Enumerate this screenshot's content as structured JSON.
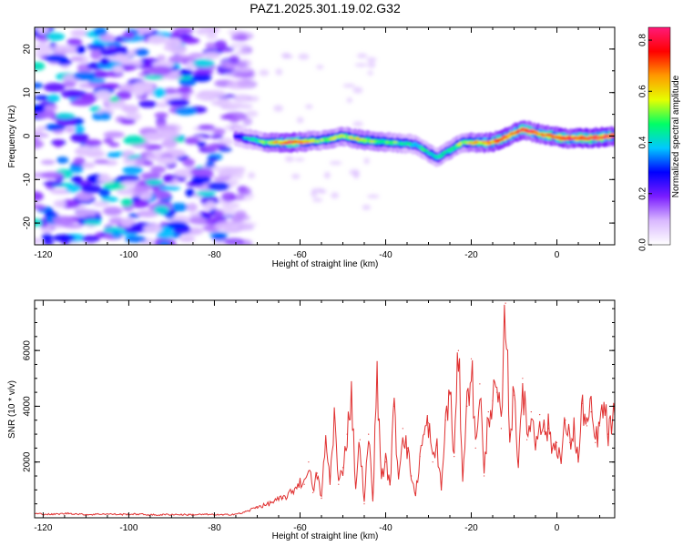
{
  "title": "PAZ1.2025.301.19.02.G32",
  "chart_data": [
    {
      "type": "heatmap",
      "xlabel": "Height of straight line (km)",
      "ylabel": "Frequency (Hz)",
      "xlim": [
        -122,
        13.5
      ],
      "ylim": [
        -25,
        25
      ],
      "xticks": [
        -120,
        -100,
        -80,
        -60,
        -40,
        -20,
        0
      ],
      "yticks": [
        -20,
        -10,
        0,
        10,
        20
      ],
      "colorbar": {
        "label": "Normalized spectral amplitude",
        "range": [
          0,
          0.85
        ],
        "ticks": [
          0.0,
          0.2,
          0.4,
          0.6,
          0.8
        ],
        "colors": [
          "#ffffff",
          "#d9b8ff",
          "#7a1cff",
          "#0000ff",
          "#00c8ff",
          "#00ff66",
          "#e6ff00",
          "#ff9900",
          "#ff0000",
          "#ff1a7a"
        ]
      },
      "noise_region": {
        "x_range": [
          -122,
          -72
        ],
        "frequency_range": [
          -25,
          25
        ],
        "amplitude": 0.15
      },
      "signal_track": [
        {
          "x": -75,
          "frequency": 0,
          "amplitude": 0.3
        },
        {
          "x": -68,
          "frequency": -1.5,
          "amplitude": 0.55
        },
        {
          "x": -62,
          "frequency": -1.5,
          "amplitude": 0.8
        },
        {
          "x": -55,
          "frequency": -1,
          "amplitude": 0.55
        },
        {
          "x": -50,
          "frequency": 0,
          "amplitude": 0.55
        },
        {
          "x": -45,
          "frequency": -1,
          "amplitude": 0.6
        },
        {
          "x": -38,
          "frequency": -1.5,
          "amplitude": 0.5
        },
        {
          "x": -33,
          "frequency": -2,
          "amplitude": 0.45
        },
        {
          "x": -28,
          "frequency": -5,
          "amplitude": 0.45
        },
        {
          "x": -22,
          "frequency": -1.5,
          "amplitude": 0.55
        },
        {
          "x": -15,
          "frequency": -1.5,
          "amplitude": 0.75
        },
        {
          "x": -8,
          "frequency": 1.5,
          "amplitude": 0.8
        },
        {
          "x": -4,
          "frequency": 0.5,
          "amplitude": 0.75
        },
        {
          "x": 2,
          "frequency": -0.5,
          "amplitude": 0.8
        },
        {
          "x": 8,
          "frequency": -0.5,
          "amplitude": 0.85
        },
        {
          "x": 13,
          "frequency": 0,
          "amplitude": 0.8
        }
      ]
    },
    {
      "type": "line",
      "xlabel": "Height of straight line (km)",
      "ylabel": "SNR (10 * v/v)",
      "xlim": [
        -122,
        13.5
      ],
      "ylim": [
        0,
        7800
      ],
      "xticks": [
        -120,
        -100,
        -80,
        -60,
        -40,
        -20,
        0
      ],
      "yticks": [
        2000,
        4000,
        6000
      ],
      "color": "#e03030",
      "series": [
        {
          "name": "SNR",
          "x": [
            -122,
            -118,
            -114,
            -110,
            -106,
            -102,
            -98,
            -94,
            -90,
            -86,
            -82,
            -78,
            -74,
            -72,
            -70,
            -68,
            -66,
            -64,
            -62,
            -60,
            -59,
            -58,
            -57,
            -56,
            -55,
            -54,
            -53,
            -52,
            -51,
            -50,
            -49,
            -48,
            -47,
            -46,
            -45,
            -44,
            -43,
            -42,
            -41,
            -40,
            -39,
            -38,
            -37,
            -36,
            -35,
            -34,
            -33,
            -32,
            -31,
            -30,
            -29,
            -28,
            -27,
            -26,
            -25,
            -24,
            -23,
            -22,
            -21,
            -20,
            -19,
            -18,
            -17,
            -16,
            -15,
            -14,
            -13,
            -12,
            -11,
            -10,
            -9,
            -8,
            -7,
            -6,
            -5,
            -4,
            -3,
            -2,
            -1,
            0,
            1,
            2,
            3,
            4,
            5,
            6,
            7,
            8,
            9,
            10,
            11,
            12,
            13.5
          ],
          "values": [
            150,
            120,
            160,
            110,
            140,
            120,
            130,
            100,
            120,
            110,
            120,
            100,
            150,
            250,
            400,
            450,
            600,
            700,
            900,
            1300,
            1200,
            2000,
            900,
            1600,
            700,
            2800,
            1300,
            3700,
            1200,
            1800,
            3000,
            4500,
            1100,
            2800,
            500,
            3000,
            700,
            5000,
            1500,
            2000,
            1200,
            4000,
            1400,
            3200,
            2500,
            1500,
            800,
            2200,
            3000,
            3400,
            2000,
            2600,
            1000,
            3500,
            4500,
            2200,
            6000,
            1500,
            4000,
            5700,
            2500,
            4800,
            1500,
            3800,
            4200,
            4500,
            3200,
            7700,
            3000,
            4400,
            2000,
            5000,
            2800,
            3800,
            2600,
            3700,
            3100,
            3200,
            2500,
            2700,
            2000,
            3500,
            2700,
            3200,
            2000,
            4100,
            3300,
            3800,
            2700,
            3300,
            4000,
            3000,
            3700
          ]
        }
      ]
    }
  ]
}
